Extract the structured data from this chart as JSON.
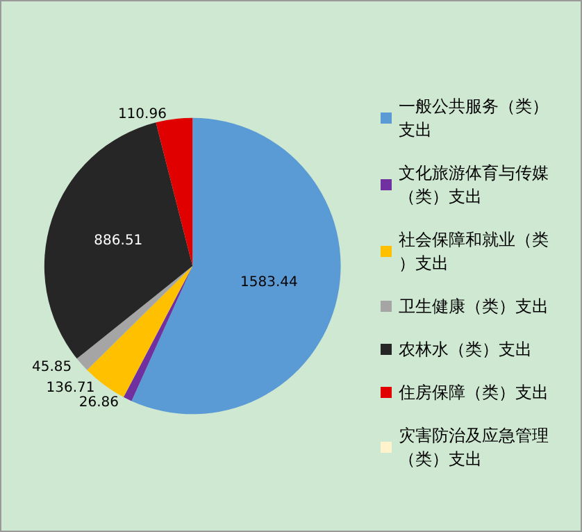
{
  "chart_data": {
    "type": "pie",
    "categories": [
      "一般公共服务（类）支出",
      "文化旅游体育与传媒（类）支出",
      "社会保障和就业（类）支出",
      "卫生健康（类）支出",
      "农林水（类）支出",
      "住房保障（类）支出",
      "灾害防治及应急管理（类）支出"
    ],
    "values": [
      1583.44,
      26.86,
      136.71,
      45.85,
      886.51,
      110.96,
      null
    ],
    "colors": [
      "#5b9bd5",
      "#7030a0",
      "#ffc000",
      "#a5a5a5",
      "#262626",
      "#e00000",
      "#fff2cc"
    ],
    "value_labels": [
      "1583.44",
      "26.86",
      "136.71",
      "45.85",
      "886.51",
      "110.96",
      null
    ],
    "legend": "right"
  }
}
